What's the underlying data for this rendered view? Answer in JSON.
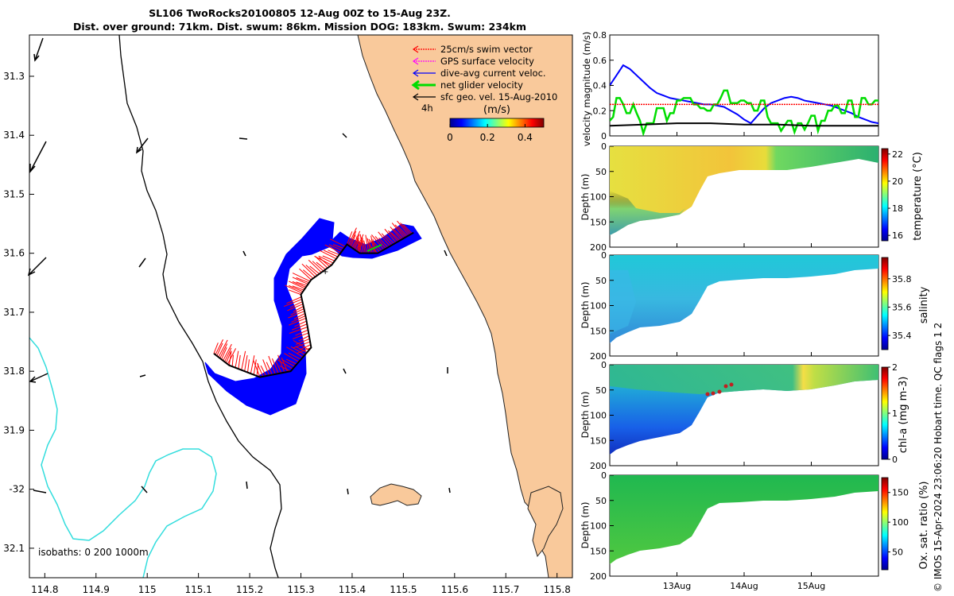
{
  "title": {
    "line1": "SL106 TwoRocks20100805 12-Aug 00Z to 15-Aug 23Z.",
    "line2": "Dist. over ground: 71km. Dist. swum: 86km. Mission DOG: 183km. Swum: 234km"
  },
  "colors": {
    "land": "#f9c99b",
    "ocean": "#ffffff",
    "isobath_200": "#000000",
    "isobath_1000": "#33dddd",
    "swim_vector": "#ff0000",
    "gps_velocity": "#ff00ff",
    "current": "#0000ff",
    "net_velocity": "#00dd00",
    "sfc_geo": "#000000"
  },
  "chart_data": [
    {
      "type": "map",
      "xlabel_ticks": [
        "114.8",
        "114.9",
        "115",
        "115.1",
        "115.2",
        "115.3",
        "115.4",
        "115.5",
        "115.6",
        "115.7",
        "115.8"
      ],
      "x_values": [
        114.8,
        114.9,
        115.0,
        115.1,
        115.2,
        115.3,
        115.4,
        115.5,
        115.6,
        115.7,
        115.8
      ],
      "xlim": [
        114.77,
        115.83
      ],
      "ylabel_ticks": [
        "31.3",
        "31.4",
        "31.5",
        "31.6",
        "31.7",
        "31.8",
        "31.9",
        "-32",
        "32.1"
      ],
      "y_values": [
        -31.3,
        -31.4,
        -31.5,
        -31.6,
        -31.7,
        -31.8,
        -31.9,
        -32.0,
        -32.1
      ],
      "ylim": [
        -32.15,
        -31.23
      ],
      "legend": [
        {
          "label": "25cm/s swim vector",
          "color": "#ff0000"
        },
        {
          "label": "GPS surface velocity",
          "color": "#ff00ff"
        },
        {
          "label": "dive-avg current veloc.",
          "color": "#0000ff"
        },
        {
          "label": "net glider velocity",
          "color": "#00dd00"
        },
        {
          "label": "sfc geo. vel. 15-Aug-2010",
          "color": "#000000"
        }
      ],
      "scale_note": "4h",
      "colorbar": {
        "title": "(m/s)",
        "tick_labels": [
          "0",
          "0.2",
          "0.4"
        ],
        "ticks": [
          0,
          0.2,
          0.4
        ],
        "range": [
          0,
          0.5
        ]
      },
      "isobath_note": "isobaths: 0   200  1000m",
      "track": [
        [
          115.13,
          -31.77
        ],
        [
          115.16,
          -31.79
        ],
        [
          115.22,
          -31.81
        ],
        [
          115.28,
          -31.8
        ],
        [
          115.32,
          -31.76
        ],
        [
          115.31,
          -31.71
        ],
        [
          115.3,
          -31.67
        ],
        [
          115.32,
          -31.645
        ],
        [
          115.36,
          -31.62
        ],
        [
          115.39,
          -31.585
        ],
        [
          115.415,
          -31.6
        ],
        [
          115.45,
          -31.6
        ],
        [
          115.49,
          -31.58
        ],
        [
          115.52,
          -31.565
        ]
      ]
    },
    {
      "type": "line",
      "ylabel": "velocity magnitude (m/s)",
      "ylim": [
        0,
        0.8
      ],
      "yticks": [
        0,
        0.2,
        0.4,
        0.6,
        0.8
      ],
      "ytick_labels": [
        "0",
        "0.2",
        "0.4",
        "0.6",
        "0.8"
      ],
      "xlim": [
        12.0,
        16.0
      ],
      "series": [
        {
          "name": "dive-avg current",
          "color": "#0000ff",
          "x": [
            12.0,
            12.1,
            12.2,
            12.3,
            12.4,
            12.5,
            12.6,
            12.7,
            12.8,
            12.9,
            13.0,
            13.1,
            13.2,
            13.3,
            13.4,
            13.5,
            13.6,
            13.7,
            13.8,
            13.9,
            14.0,
            14.1,
            14.2,
            14.3,
            14.4,
            14.5,
            14.6,
            14.7,
            14.8,
            14.9,
            15.0,
            15.1,
            15.2,
            15.3,
            15.4,
            15.5,
            15.6,
            15.7,
            15.8,
            15.9,
            16.0
          ],
          "y": [
            0.4,
            0.48,
            0.56,
            0.53,
            0.48,
            0.43,
            0.38,
            0.34,
            0.32,
            0.3,
            0.29,
            0.28,
            0.27,
            0.26,
            0.25,
            0.25,
            0.24,
            0.23,
            0.2,
            0.17,
            0.13,
            0.1,
            0.16,
            0.22,
            0.26,
            0.28,
            0.3,
            0.31,
            0.3,
            0.28,
            0.27,
            0.26,
            0.25,
            0.24,
            0.22,
            0.2,
            0.18,
            0.15,
            0.13,
            0.11,
            0.1
          ]
        },
        {
          "name": "net glider velocity",
          "color": "#00dd00",
          "x": [
            12.0,
            12.05,
            12.1,
            12.15,
            12.2,
            12.25,
            12.3,
            12.35,
            12.4,
            12.45,
            12.5,
            12.55,
            12.6,
            12.65,
            12.7,
            12.75,
            12.8,
            12.85,
            12.9,
            12.95,
            13.0,
            13.05,
            13.1,
            13.15,
            13.2,
            13.25,
            13.3,
            13.35,
            13.4,
            13.45,
            13.5,
            13.55,
            13.6,
            13.65,
            13.7,
            13.75,
            13.8,
            13.85,
            13.9,
            13.95,
            14.0,
            14.05,
            14.1,
            14.15,
            14.2,
            14.25,
            14.3,
            14.35,
            14.4,
            14.45,
            14.5,
            14.55,
            14.6,
            14.65,
            14.7,
            14.75,
            14.8,
            14.85,
            14.9,
            14.95,
            15.0,
            15.05,
            15.1,
            15.15,
            15.2,
            15.25,
            15.3,
            15.35,
            15.4,
            15.45,
            15.5,
            15.55,
            15.6,
            15.65,
            15.7,
            15.75,
            15.8,
            15.85,
            15.9,
            15.95,
            16.0
          ],
          "y": [
            0.12,
            0.15,
            0.3,
            0.3,
            0.25,
            0.18,
            0.18,
            0.25,
            0.18,
            0.12,
            0.02,
            0.1,
            0.1,
            0.1,
            0.22,
            0.22,
            0.22,
            0.12,
            0.18,
            0.18,
            0.28,
            0.28,
            0.3,
            0.3,
            0.3,
            0.25,
            0.25,
            0.22,
            0.22,
            0.2,
            0.2,
            0.25,
            0.25,
            0.3,
            0.36,
            0.36,
            0.26,
            0.26,
            0.26,
            0.28,
            0.28,
            0.26,
            0.26,
            0.2,
            0.2,
            0.28,
            0.28,
            0.15,
            0.1,
            0.1,
            0.1,
            0.04,
            0.08,
            0.12,
            0.12,
            0.03,
            0.1,
            0.1,
            0.05,
            0.1,
            0.16,
            0.16,
            0.04,
            0.12,
            0.12,
            0.2,
            0.2,
            0.24,
            0.24,
            0.18,
            0.18,
            0.28,
            0.28,
            0.15,
            0.15,
            0.3,
            0.3,
            0.25,
            0.25,
            0.28,
            0.28
          ]
        },
        {
          "name": "swim vector",
          "color": "#ff0000",
          "x": [
            12.0,
            16.0
          ],
          "y": [
            0.25,
            0.25
          ]
        },
        {
          "name": "sfc geo",
          "color": "#000000",
          "x": [
            12.0,
            12.5,
            13.0,
            13.5,
            14.0,
            14.5,
            15.0,
            15.5,
            16.0
          ],
          "y": [
            0.08,
            0.09,
            0.1,
            0.1,
            0.09,
            0.09,
            0.08,
            0.08,
            0.08
          ]
        }
      ]
    },
    {
      "type": "heatmap",
      "variable": "temperature",
      "ylabel": "Depth (m)",
      "clabel": "temperature (°C)",
      "ytick_labels": [
        "0",
        "50",
        "100",
        "150",
        "200"
      ],
      "yticks": [
        0,
        50,
        100,
        150,
        200
      ],
      "colorbar_tick_labels": [
        "16",
        "18",
        "20",
        "22"
      ],
      "colorbar_ticks": [
        16,
        18,
        20,
        22
      ],
      "colorbar_range": [
        15.6,
        22.4
      ]
    },
    {
      "type": "heatmap",
      "variable": "salinity",
      "ylabel": "Depth (m)",
      "clabel": "salinity",
      "ytick_labels": [
        "0",
        "50",
        "100",
        "150",
        "200"
      ],
      "yticks": [
        0,
        50,
        100,
        150,
        200
      ],
      "colorbar_tick_labels": [
        "35.4",
        "35.6",
        "35.8"
      ],
      "colorbar_ticks": [
        35.4,
        35.6,
        35.8
      ],
      "colorbar_range": [
        35.3,
        35.95
      ]
    },
    {
      "type": "heatmap",
      "variable": "chl-a",
      "ylabel": "Depth (m)",
      "clabel": "chl-a (mg m-3)",
      "ytick_labels": [
        "0",
        "50",
        "100",
        "150",
        "200"
      ],
      "yticks": [
        0,
        50,
        100,
        150,
        200
      ],
      "colorbar_tick_labels": [
        "0",
        "1",
        "2"
      ],
      "colorbar_ticks": [
        0,
        1,
        2
      ],
      "colorbar_range": [
        0,
        2
      ]
    },
    {
      "type": "heatmap",
      "variable": "oxygen",
      "ylabel": "Depth (m)",
      "clabel": "Ox. sat. ratio (%)",
      "ytick_labels": [
        "0",
        "50",
        "100",
        "150",
        "200"
      ],
      "yticks": [
        0,
        50,
        100,
        150,
        200
      ],
      "colorbar_tick_labels": [
        "50",
        "100",
        "150"
      ],
      "colorbar_ticks": [
        50,
        100,
        150
      ],
      "colorbar_range": [
        20,
        175
      ],
      "xtick_labels": [
        "13Aug",
        "14Aug",
        "15Aug"
      ],
      "xticks": [
        13,
        14,
        15
      ]
    }
  ],
  "credit": "© IMOS 15-Apr-2024 23:06:20 Hobart time. QC flags 1  2"
}
